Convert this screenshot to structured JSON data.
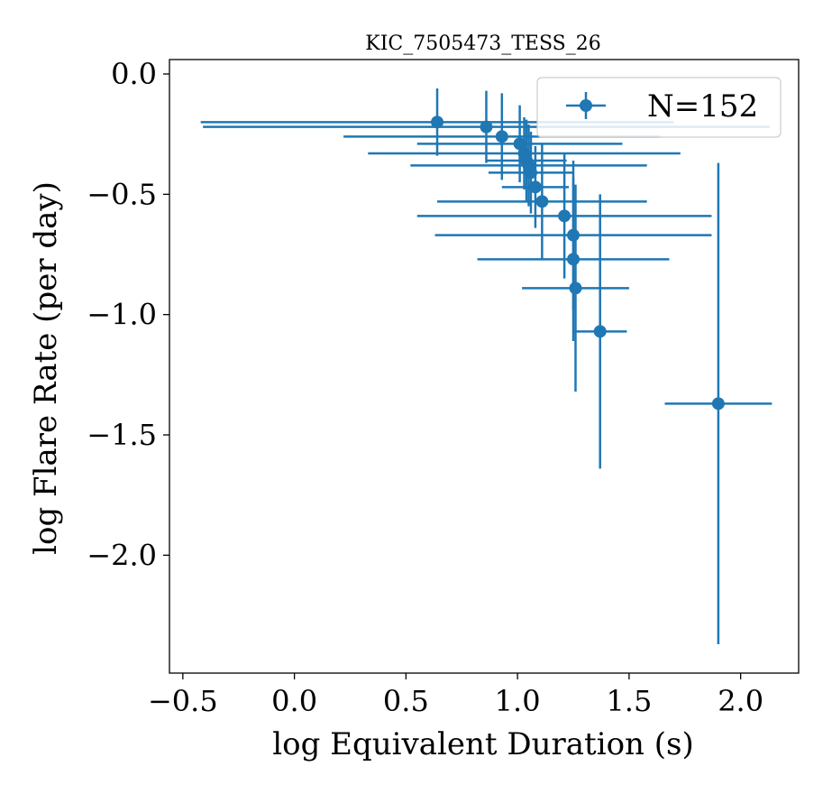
{
  "chart_data": {
    "type": "scatter",
    "title": "KIC_7505473_TESS_26",
    "xlabel": "log Equivalent Duration (s)",
    "ylabel": "log Flare Rate (per day)",
    "xlim": [
      -0.56,
      2.26
    ],
    "ylim": [
      -2.49,
      0.06
    ],
    "xticks": [
      -0.5,
      0.0,
      0.5,
      1.0,
      1.5,
      2.0
    ],
    "xtick_labels": [
      "−0.5",
      "0.0",
      "0.5",
      "1.0",
      "1.5",
      "2.0"
    ],
    "yticks": [
      0.0,
      -0.5,
      -1.0,
      -1.5,
      -2.0
    ],
    "ytick_labels": [
      "0.0",
      "−0.5",
      "−1.0",
      "−1.5",
      "−2.0"
    ],
    "grid": false,
    "legend_position": "top-right",
    "color": "#1f77b4",
    "series": [
      {
        "name": "N=152",
        "points": [
          {
            "x": 0.64,
            "y": -0.2,
            "xerr": [
              1.06,
              1.06
            ],
            "yerr": [
              0.14,
              0.14
            ]
          },
          {
            "x": 0.86,
            "y": -0.22,
            "xerr": [
              1.27,
              1.27
            ],
            "yerr": [
              0.15,
              0.15
            ]
          },
          {
            "x": 0.93,
            "y": -0.26,
            "xerr": [
              0.71,
              0.71
            ],
            "yerr": [
              0.18,
              0.18
            ]
          },
          {
            "x": 1.01,
            "y": -0.29,
            "xerr": [
              0.46,
              0.46
            ],
            "yerr": [
              0.16,
              0.16
            ]
          },
          {
            "x": 1.03,
            "y": -0.33,
            "xerr": [
              0.7,
              0.7
            ],
            "yerr": [
              0.15,
              0.15
            ]
          },
          {
            "x": 1.04,
            "y": -0.36,
            "xerr": [
              0.18,
              0.18
            ],
            "yerr": [
              0.17,
              0.17
            ]
          },
          {
            "x": 1.05,
            "y": -0.38,
            "xerr": [
              0.53,
              0.53
            ],
            "yerr": [
              0.17,
              0.17
            ]
          },
          {
            "x": 1.06,
            "y": -0.41,
            "xerr": [
              0.19,
              0.19
            ],
            "yerr": [
              0.17,
              0.17
            ]
          },
          {
            "x": 1.08,
            "y": -0.47,
            "xerr": [
              0.15,
              0.15
            ],
            "yerr": [
              0.17,
              0.17
            ]
          },
          {
            "x": 1.11,
            "y": -0.53,
            "xerr": [
              0.47,
              0.47
            ],
            "yerr": [
              0.24,
              0.24
            ]
          },
          {
            "x": 1.21,
            "y": -0.59,
            "xerr": [
              0.66,
              0.66
            ],
            "yerr": [
              0.26,
              0.26
            ]
          },
          {
            "x": 1.25,
            "y": -0.67,
            "xerr": [
              0.62,
              0.62
            ],
            "yerr": [
              0.31,
              0.31
            ]
          },
          {
            "x": 1.25,
            "y": -0.77,
            "xerr": [
              0.43,
              0.43
            ],
            "yerr": [
              0.34,
              0.34
            ]
          },
          {
            "x": 1.26,
            "y": -0.89,
            "xerr": [
              0.24,
              0.24
            ],
            "yerr": [
              0.43,
              0.43
            ]
          },
          {
            "x": 1.37,
            "y": -1.07,
            "xerr": [
              0.12,
              0.12
            ],
            "yerr": [
              0.57,
              0.57
            ]
          },
          {
            "x": 1.9,
            "y": -1.37,
            "xerr": [
              0.24,
              0.24
            ],
            "yerr": [
              1.0,
              1.0
            ]
          }
        ]
      }
    ]
  }
}
